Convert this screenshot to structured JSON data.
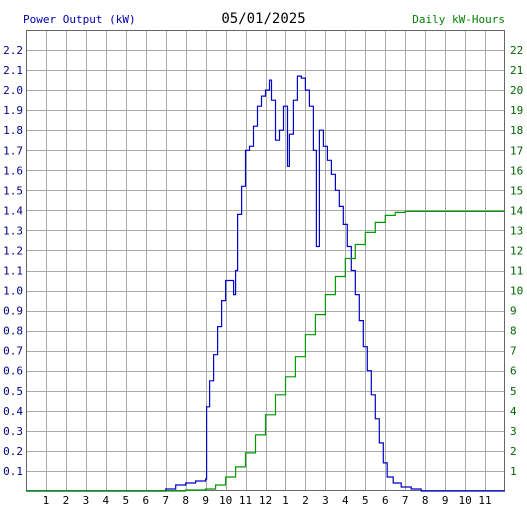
{
  "header": {
    "left_label": "Power Output (kW)",
    "date": "05/01/2025",
    "right_label": "Daily kW-Hours"
  },
  "colors": {
    "left_label": "#0000aa",
    "right_label": "#008000",
    "power_line": "#0000cc",
    "energy_line": "#009900",
    "grid": "#aaaaaa",
    "left_ticks": "#000088",
    "right_ticks": "#006600"
  },
  "chart_data": {
    "type": "line",
    "title": "05/01/2025",
    "xlabel": "",
    "ylabel": "Power Output (kW)",
    "y2label": "Daily kW-Hours",
    "x_range_hours": [
      0,
      24
    ],
    "ylim": [
      0,
      2.3
    ],
    "y2lim": [
      0,
      23
    ],
    "x_ticks": [
      "1",
      "2",
      "3",
      "4",
      "5",
      "6",
      "7",
      "8",
      "9",
      "10",
      "11",
      "12",
      "1",
      "2",
      "3",
      "4",
      "5",
      "6",
      "7",
      "8",
      "9",
      "10",
      "11"
    ],
    "y_ticks": [
      "0.1",
      "0.2",
      "0.3",
      "0.4",
      "0.5",
      "0.6",
      "0.7",
      "0.8",
      "0.9",
      "1.0",
      "1.1",
      "1.2",
      "1.3",
      "1.4",
      "1.5",
      "1.6",
      "1.7",
      "1.8",
      "1.9",
      "2.0",
      "2.1",
      "2.2"
    ],
    "y2_ticks": [
      "1",
      "2",
      "3",
      "4",
      "5",
      "6",
      "7",
      "8",
      "9",
      "10",
      "11",
      "12",
      "13",
      "14",
      "15",
      "16",
      "17",
      "18",
      "19",
      "20",
      "21",
      "22"
    ],
    "grid": true,
    "series": [
      {
        "name": "Power Output (kW)",
        "axis": "left",
        "points": [
          [
            0,
            0
          ],
          [
            6.5,
            0
          ],
          [
            7.0,
            0.01
          ],
          [
            7.5,
            0.03
          ],
          [
            8.0,
            0.04
          ],
          [
            8.5,
            0.05
          ],
          [
            9.0,
            0.06
          ],
          [
            9.05,
            0.42
          ],
          [
            9.2,
            0.55
          ],
          [
            9.4,
            0.68
          ],
          [
            9.6,
            0.82
          ],
          [
            9.8,
            0.95
          ],
          [
            10.0,
            1.05
          ],
          [
            10.2,
            1.05
          ],
          [
            10.4,
            0.98
          ],
          [
            10.5,
            1.1
          ],
          [
            10.6,
            1.38
          ],
          [
            10.8,
            1.52
          ],
          [
            11.0,
            1.7
          ],
          [
            11.2,
            1.72
          ],
          [
            11.4,
            1.82
          ],
          [
            11.6,
            1.92
          ],
          [
            11.8,
            1.97
          ],
          [
            12.0,
            2.0
          ],
          [
            12.2,
            2.05
          ],
          [
            12.3,
            1.95
          ],
          [
            12.5,
            1.75
          ],
          [
            12.7,
            1.8
          ],
          [
            12.9,
            1.92
          ],
          [
            13.1,
            1.62
          ],
          [
            13.2,
            1.78
          ],
          [
            13.4,
            1.95
          ],
          [
            13.6,
            2.07
          ],
          [
            13.8,
            2.06
          ],
          [
            14.0,
            2.0
          ],
          [
            14.2,
            1.92
          ],
          [
            14.4,
            1.7
          ],
          [
            14.55,
            1.22
          ],
          [
            14.7,
            1.8
          ],
          [
            14.9,
            1.72
          ],
          [
            15.1,
            1.65
          ],
          [
            15.3,
            1.58
          ],
          [
            15.5,
            1.5
          ],
          [
            15.7,
            1.42
          ],
          [
            15.9,
            1.33
          ],
          [
            16.1,
            1.22
          ],
          [
            16.3,
            1.1
          ],
          [
            16.5,
            0.98
          ],
          [
            16.7,
            0.85
          ],
          [
            16.9,
            0.72
          ],
          [
            17.1,
            0.6
          ],
          [
            17.3,
            0.48
          ],
          [
            17.5,
            0.36
          ],
          [
            17.7,
            0.24
          ],
          [
            17.9,
            0.14
          ],
          [
            18.1,
            0.07
          ],
          [
            18.4,
            0.04
          ],
          [
            18.8,
            0.02
          ],
          [
            19.3,
            0.01
          ],
          [
            19.8,
            0.0
          ],
          [
            24,
            0
          ]
        ]
      },
      {
        "name": "Daily kW-Hours",
        "axis": "right",
        "points": [
          [
            0,
            0
          ],
          [
            7,
            0
          ],
          [
            8,
            0.05
          ],
          [
            9,
            0.1
          ],
          [
            9.5,
            0.3
          ],
          [
            10,
            0.7
          ],
          [
            10.5,
            1.2
          ],
          [
            11,
            1.9
          ],
          [
            11.5,
            2.8
          ],
          [
            12,
            3.8
          ],
          [
            12.5,
            4.8
          ],
          [
            13,
            5.7
          ],
          [
            13.5,
            6.7
          ],
          [
            14,
            7.8
          ],
          [
            14.5,
            8.8
          ],
          [
            15,
            9.8
          ],
          [
            15.5,
            10.7
          ],
          [
            16,
            11.6
          ],
          [
            16.5,
            12.3
          ],
          [
            17,
            12.9
          ],
          [
            17.5,
            13.4
          ],
          [
            18,
            13.75
          ],
          [
            18.5,
            13.9
          ],
          [
            19,
            13.95
          ],
          [
            20,
            13.95
          ],
          [
            24,
            13.95
          ]
        ]
      }
    ]
  }
}
